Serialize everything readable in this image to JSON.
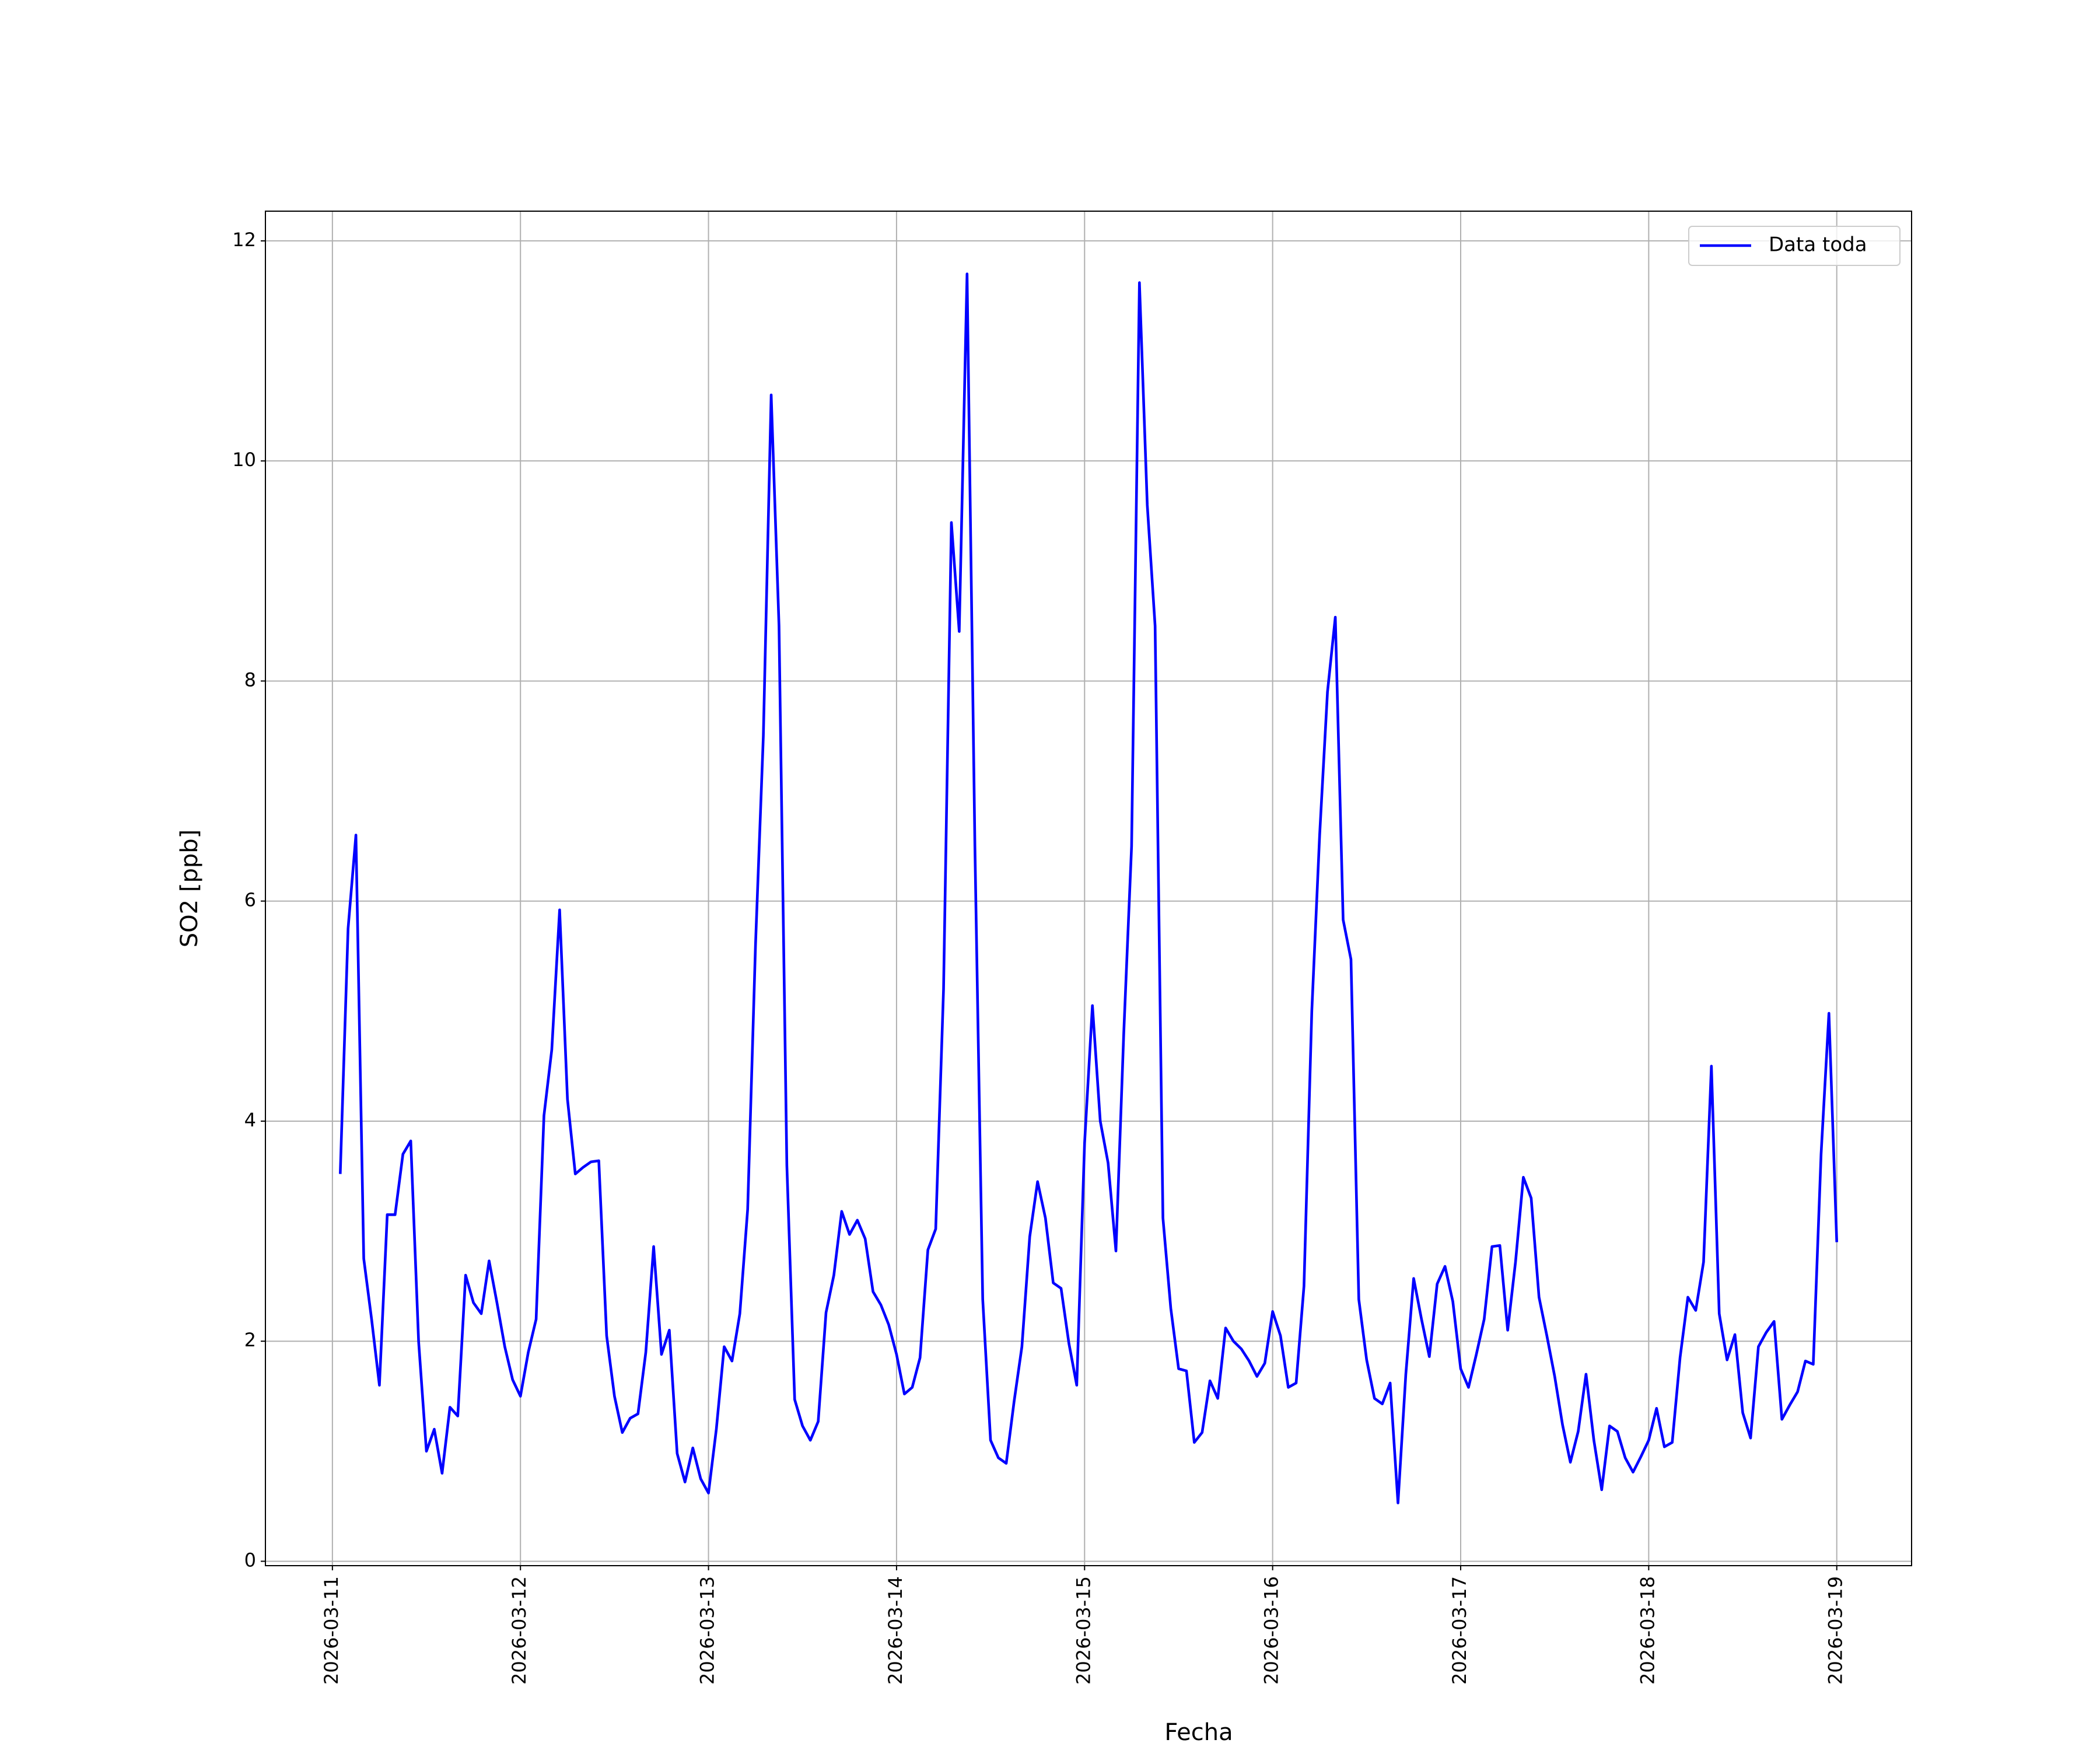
{
  "chart_data": {
    "type": "line",
    "xlabel": "Fecha",
    "ylabel": "SO2 [ppb]",
    "xlim": [
      "2026-03-10 15:27",
      "2026-03-19 09:33"
    ],
    "xticks": [
      "2026-03-11",
      "2026-03-12",
      "2026-03-13",
      "2026-03-14",
      "2026-03-15",
      "2026-03-16",
      "2026-03-17",
      "2026-03-18",
      "2026-03-19"
    ],
    "ylim": [
      -0.04,
      12.27
    ],
    "yticks": [
      0,
      2,
      4,
      6,
      8,
      10,
      12
    ],
    "grid": true,
    "legend": "upper right",
    "x": [
      "2026-03-11 01:00",
      "2026-03-11 02:00",
      "2026-03-11 03:00",
      "2026-03-11 04:00",
      "2026-03-11 05:00",
      "2026-03-11 06:00",
      "2026-03-11 07:00",
      "2026-03-11 08:00",
      "2026-03-11 09:00",
      "2026-03-11 10:00",
      "2026-03-11 11:00",
      "2026-03-11 12:00",
      "2026-03-11 13:00",
      "2026-03-11 14:00",
      "2026-03-11 15:00",
      "2026-03-11 16:00",
      "2026-03-11 17:00",
      "2026-03-11 18:00",
      "2026-03-11 19:00",
      "2026-03-11 20:00",
      "2026-03-11 21:00",
      "2026-03-11 22:00",
      "2026-03-11 23:00",
      "2026-03-12 00:00",
      "2026-03-12 01:00",
      "2026-03-12 02:00",
      "2026-03-12 03:00",
      "2026-03-12 04:00",
      "2026-03-12 05:00",
      "2026-03-12 06:00",
      "2026-03-12 07:00",
      "2026-03-12 08:00",
      "2026-03-12 09:00",
      "2026-03-12 10:00",
      "2026-03-12 11:00",
      "2026-03-12 12:00",
      "2026-03-12 13:00",
      "2026-03-12 14:00",
      "2026-03-12 15:00",
      "2026-03-12 16:00",
      "2026-03-12 17:00",
      "2026-03-12 18:00",
      "2026-03-12 19:00",
      "2026-03-12 20:00",
      "2026-03-12 21:00",
      "2026-03-12 22:00",
      "2026-03-12 23:00",
      "2026-03-13 00:00",
      "2026-03-13 01:00",
      "2026-03-13 02:00",
      "2026-03-13 03:00",
      "2026-03-13 04:00",
      "2026-03-13 05:00",
      "2026-03-13 06:00",
      "2026-03-13 07:00",
      "2026-03-13 08:00",
      "2026-03-13 09:00",
      "2026-03-13 10:00",
      "2026-03-13 11:00",
      "2026-03-13 12:00",
      "2026-03-13 13:00",
      "2026-03-13 14:00",
      "2026-03-13 15:00",
      "2026-03-13 16:00",
      "2026-03-13 17:00",
      "2026-03-13 18:00",
      "2026-03-13 19:00",
      "2026-03-13 20:00",
      "2026-03-13 21:00",
      "2026-03-13 22:00",
      "2026-03-13 23:00",
      "2026-03-14 00:00",
      "2026-03-14 01:00",
      "2026-03-14 02:00",
      "2026-03-14 03:00",
      "2026-03-14 04:00",
      "2026-03-14 05:00",
      "2026-03-14 06:00",
      "2026-03-14 07:00",
      "2026-03-14 08:00",
      "2026-03-14 09:00",
      "2026-03-14 10:00",
      "2026-03-14 11:00",
      "2026-03-14 12:00",
      "2026-03-14 13:00",
      "2026-03-14 14:00",
      "2026-03-14 15:00",
      "2026-03-14 16:00",
      "2026-03-14 17:00",
      "2026-03-14 18:00",
      "2026-03-14 19:00",
      "2026-03-14 20:00",
      "2026-03-14 21:00",
      "2026-03-14 22:00",
      "2026-03-14 23:00",
      "2026-03-15 00:00",
      "2026-03-15 01:00",
      "2026-03-15 02:00",
      "2026-03-15 03:00",
      "2026-03-15 04:00",
      "2026-03-15 05:00",
      "2026-03-15 06:00",
      "2026-03-15 07:00",
      "2026-03-15 08:00",
      "2026-03-15 09:00",
      "2026-03-15 10:00",
      "2026-03-15 11:00",
      "2026-03-15 12:00",
      "2026-03-15 13:00",
      "2026-03-15 14:00",
      "2026-03-15 15:00",
      "2026-03-15 16:00",
      "2026-03-15 17:00",
      "2026-03-15 18:00",
      "2026-03-15 19:00",
      "2026-03-15 20:00",
      "2026-03-15 21:00",
      "2026-03-15 22:00",
      "2026-03-15 23:00",
      "2026-03-16 00:00",
      "2026-03-16 01:00",
      "2026-03-16 02:00",
      "2026-03-16 03:00",
      "2026-03-16 04:00",
      "2026-03-16 05:00",
      "2026-03-16 06:00",
      "2026-03-16 07:00",
      "2026-03-16 08:00",
      "2026-03-16 09:00",
      "2026-03-16 10:00",
      "2026-03-16 11:00",
      "2026-03-16 12:00",
      "2026-03-16 13:00",
      "2026-03-16 14:00",
      "2026-03-16 15:00",
      "2026-03-16 16:00",
      "2026-03-16 17:00",
      "2026-03-16 18:00",
      "2026-03-16 19:00",
      "2026-03-16 20:00",
      "2026-03-16 21:00",
      "2026-03-16 22:00",
      "2026-03-16 23:00",
      "2026-03-17 00:00",
      "2026-03-17 01:00",
      "2026-03-17 02:00",
      "2026-03-17 03:00",
      "2026-03-17 04:00",
      "2026-03-17 05:00",
      "2026-03-17 06:00",
      "2026-03-17 07:00",
      "2026-03-17 08:00",
      "2026-03-17 09:00",
      "2026-03-17 10:00",
      "2026-03-17 11:00",
      "2026-03-17 12:00",
      "2026-03-17 13:00",
      "2026-03-17 14:00",
      "2026-03-17 15:00",
      "2026-03-17 16:00",
      "2026-03-17 17:00",
      "2026-03-17 18:00",
      "2026-03-17 19:00",
      "2026-03-17 20:00",
      "2026-03-17 21:00",
      "2026-03-17 22:00",
      "2026-03-17 23:00",
      "2026-03-18 00:00",
      "2026-03-18 01:00",
      "2026-03-18 02:00",
      "2026-03-18 03:00",
      "2026-03-18 04:00",
      "2026-03-18 05:00",
      "2026-03-18 06:00",
      "2026-03-18 07:00",
      "2026-03-18 08:00",
      "2026-03-18 09:00",
      "2026-03-18 10:00",
      "2026-03-18 11:00",
      "2026-03-18 12:00",
      "2026-03-18 13:00",
      "2026-03-18 14:00",
      "2026-03-18 15:00",
      "2026-03-18 16:00",
      "2026-03-18 17:00",
      "2026-03-18 18:00",
      "2026-03-18 19:00",
      "2026-03-18 20:00",
      "2026-03-18 21:00",
      "2026-03-18 22:00",
      "2026-03-18 23:00",
      "2026-03-19 00:00"
    ],
    "series": [
      {
        "name": "Data toda",
        "color": "#0000ff",
        "values": [
          3.52,
          5.75,
          6.6,
          2.75,
          2.2,
          1.6,
          3.15,
          3.15,
          3.7,
          3.82,
          2.0,
          1.0,
          1.2,
          0.8,
          1.4,
          1.32,
          2.6,
          2.35,
          2.25,
          2.73,
          2.35,
          1.95,
          1.65,
          1.5,
          1.9,
          2.2,
          4.05,
          4.65,
          5.92,
          4.2,
          3.52,
          3.58,
          3.63,
          3.64,
          2.05,
          1.5,
          1.17,
          1.3,
          1.34,
          1.9,
          2.86,
          1.88,
          2.1,
          0.98,
          0.72,
          1.03,
          0.75,
          0.62,
          1.2,
          1.95,
          1.82,
          2.25,
          3.2,
          5.6,
          7.5,
          10.6,
          8.5,
          3.6,
          1.47,
          1.23,
          1.1,
          1.27,
          2.26,
          2.6,
          3.18,
          2.97,
          3.1,
          2.93,
          2.45,
          2.33,
          2.15,
          1.88,
          1.52,
          1.58,
          1.85,
          2.83,
          3.02,
          5.2,
          9.44,
          8.45,
          11.7,
          6.5,
          2.38,
          1.1,
          0.94,
          0.89,
          1.45,
          1.95,
          2.95,
          3.45,
          3.12,
          2.53,
          2.48,
          1.98,
          1.6,
          3.8,
          5.05,
          4.0,
          3.62,
          2.82,
          4.8,
          6.5,
          11.62,
          9.6,
          8.5,
          3.12,
          2.3,
          1.75,
          1.73,
          1.08,
          1.17,
          1.64,
          1.48,
          2.12,
          2.0,
          1.93,
          1.82,
          1.68,
          1.8,
          2.27,
          2.05,
          1.58,
          1.62,
          2.5,
          5.0,
          6.6,
          7.9,
          8.58,
          5.83,
          5.47,
          2.38,
          1.83,
          1.48,
          1.43,
          1.62,
          0.53,
          1.7,
          2.57,
          2.2,
          1.86,
          2.52,
          2.68,
          2.36,
          1.75,
          1.58,
          1.88,
          2.2,
          2.86,
          2.87,
          2.1,
          2.72,
          3.49,
          3.3,
          2.4,
          2.05,
          1.68,
          1.24,
          0.9,
          1.18,
          1.7,
          1.1,
          0.65,
          1.23,
          1.18,
          0.94,
          0.81,
          0.95,
          1.1,
          1.39,
          1.04,
          1.08,
          1.85,
          2.4,
          2.28,
          2.72,
          4.5,
          2.25,
          1.83,
          2.06,
          1.35,
          1.12,
          1.95,
          2.08,
          2.18,
          1.29,
          1.42,
          1.54,
          1.82,
          1.79,
          3.7,
          4.98,
          2.9
        ]
      }
    ]
  }
}
